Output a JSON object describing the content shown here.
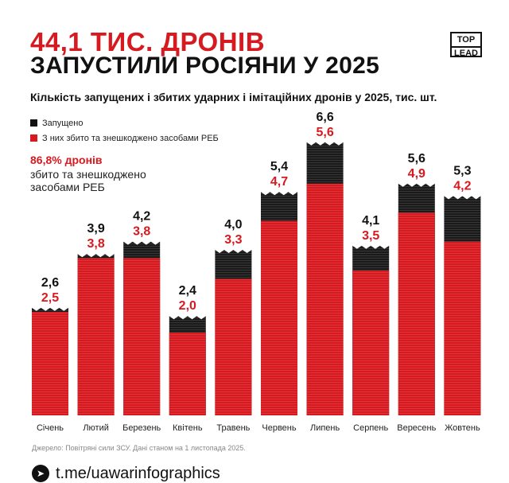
{
  "header": {
    "title_line1": "44,1 ТИС. ДРОНІВ",
    "title_line2": "ЗАПУСТИЛИ РОСІЯНИ У 2025",
    "logo_top": "TOP",
    "logo_bottom": "LEAD",
    "subtitle": "Кількість запущених і збитих ударних і імітаційних дронів у 2025, тис. шт."
  },
  "legend": {
    "launched": "Запущено",
    "shot_down": "З них збито та знешкоджено засобами РЕБ"
  },
  "note": {
    "percent": "86,8% дронів",
    "text": "збито та знешкоджено засобами РЕБ"
  },
  "colors": {
    "launched": "#1a1a1a",
    "shot_down": "#d71920",
    "accent": "#d71920"
  },
  "chart_data": {
    "type": "bar",
    "title": "Кількість запущених і збитих ударних і імітаційних дронів у 2025, тис. шт.",
    "categories": [
      "Січень",
      "Лютий",
      "Березень",
      "Квітень",
      "Травень",
      "Червень",
      "Липень",
      "Серпень",
      "Вересень",
      "Жовтень"
    ],
    "series": [
      {
        "name": "Запущено",
        "values": [
          2.6,
          3.9,
          4.2,
          2.4,
          4.0,
          5.4,
          6.6,
          4.1,
          5.6,
          5.3
        ],
        "labels": [
          "2,6",
          "3,9",
          "4,2",
          "2,4",
          "4,0",
          "5,4",
          "6,6",
          "4,1",
          "5,6",
          "5,3"
        ]
      },
      {
        "name": "З них збито та знешкоджено засобами РЕБ",
        "values": [
          2.5,
          3.8,
          3.8,
          2.0,
          3.3,
          4.7,
          5.6,
          3.5,
          4.9,
          4.2
        ],
        "labels": [
          "2,5",
          "3,8",
          "3,8",
          "2,0",
          "3,3",
          "4,7",
          "5,6",
          "3,5",
          "4,9",
          "4,2"
        ]
      }
    ],
    "ylim": [
      0,
      6.6
    ],
    "xlabel": "",
    "ylabel": ""
  },
  "source": "Джерело: Повітряні сили ЗСУ. Дані станом на 1 листопада 2025.",
  "footer": {
    "channel": "t.me/uawarinfographics"
  }
}
